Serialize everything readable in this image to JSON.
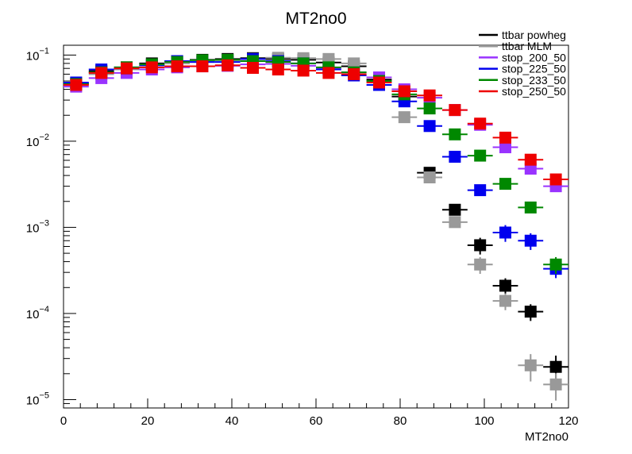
{
  "chart_data": {
    "type": "scatter",
    "title": "MT2no0",
    "xlabel": "MT2no0",
    "ylabel": "",
    "xlim": [
      0,
      120
    ],
    "ylim": [
      8e-06,
      0.13
    ],
    "log_y": true,
    "grid": false,
    "legend_position": "top-right",
    "x_ticks": [
      0,
      20,
      40,
      60,
      80,
      100,
      120
    ],
    "x_tick_labels": [
      "0",
      "20",
      "40",
      "60",
      "80",
      "100",
      "120"
    ],
    "y_ticks": [
      1e-05,
      0.0001,
      0.001,
      0.01,
      0.1
    ],
    "y_tick_mantissa": [
      "10",
      "10",
      "10",
      "10",
      "10"
    ],
    "y_tick_exponents": [
      "−5",
      "−4",
      "−3",
      "−2",
      "−1"
    ],
    "x_bin_width": 6,
    "x": [
      3,
      9,
      15,
      21,
      27,
      33,
      39,
      45,
      51,
      57,
      63,
      69,
      75,
      81,
      87,
      93,
      99,
      105,
      111,
      117
    ],
    "series": [
      {
        "name": "ttbar powheg",
        "color": "#000000",
        "values": [
          0.047,
          0.065,
          0.072,
          0.08,
          0.085,
          0.088,
          0.09,
          0.092,
          0.09,
          0.088,
          0.082,
          0.074,
          0.052,
          0.033,
          0.0043,
          0.0016,
          0.00062,
          0.00021,
          0.000105,
          2.4e-05
        ]
      },
      {
        "name": "ttbar MLM",
        "color": "#999999",
        "values": [
          0.045,
          0.06,
          0.068,
          0.076,
          0.08,
          0.083,
          0.087,
          0.09,
          0.093,
          0.092,
          0.09,
          0.08,
          0.05,
          0.019,
          0.0038,
          0.00115,
          0.00037,
          0.00014,
          2.5e-05,
          1.5e-05
        ]
      },
      {
        "name": "stop_200_50",
        "color": "#9933ff",
        "values": [
          0.043,
          0.054,
          0.062,
          0.068,
          0.072,
          0.074,
          0.075,
          0.078,
          0.079,
          0.075,
          0.07,
          0.063,
          0.055,
          0.04,
          0.032,
          0.023,
          0.0155,
          0.0085,
          0.0048,
          0.003
        ]
      },
      {
        "name": "stop_225_50",
        "color": "#0000ee",
        "values": [
          0.048,
          0.068,
          0.07,
          0.076,
          0.085,
          0.083,
          0.083,
          0.09,
          0.085,
          0.08,
          0.068,
          0.058,
          0.045,
          0.029,
          0.015,
          0.0066,
          0.0027,
          0.00087,
          0.0007,
          0.00033
        ]
      },
      {
        "name": "stop_233_50",
        "color": "#008800",
        "values": [
          0.046,
          0.063,
          0.072,
          0.078,
          0.083,
          0.087,
          0.088,
          0.085,
          0.083,
          0.08,
          0.072,
          0.063,
          0.05,
          0.035,
          0.024,
          0.012,
          0.0068,
          0.0032,
          0.0017,
          0.00037
        ]
      },
      {
        "name": "stop_250_50",
        "color": "#ee0000",
        "values": [
          0.045,
          0.062,
          0.07,
          0.072,
          0.074,
          0.074,
          0.076,
          0.071,
          0.068,
          0.066,
          0.062,
          0.06,
          0.048,
          0.038,
          0.034,
          0.023,
          0.016,
          0.011,
          0.0061,
          0.0036
        ]
      }
    ]
  }
}
